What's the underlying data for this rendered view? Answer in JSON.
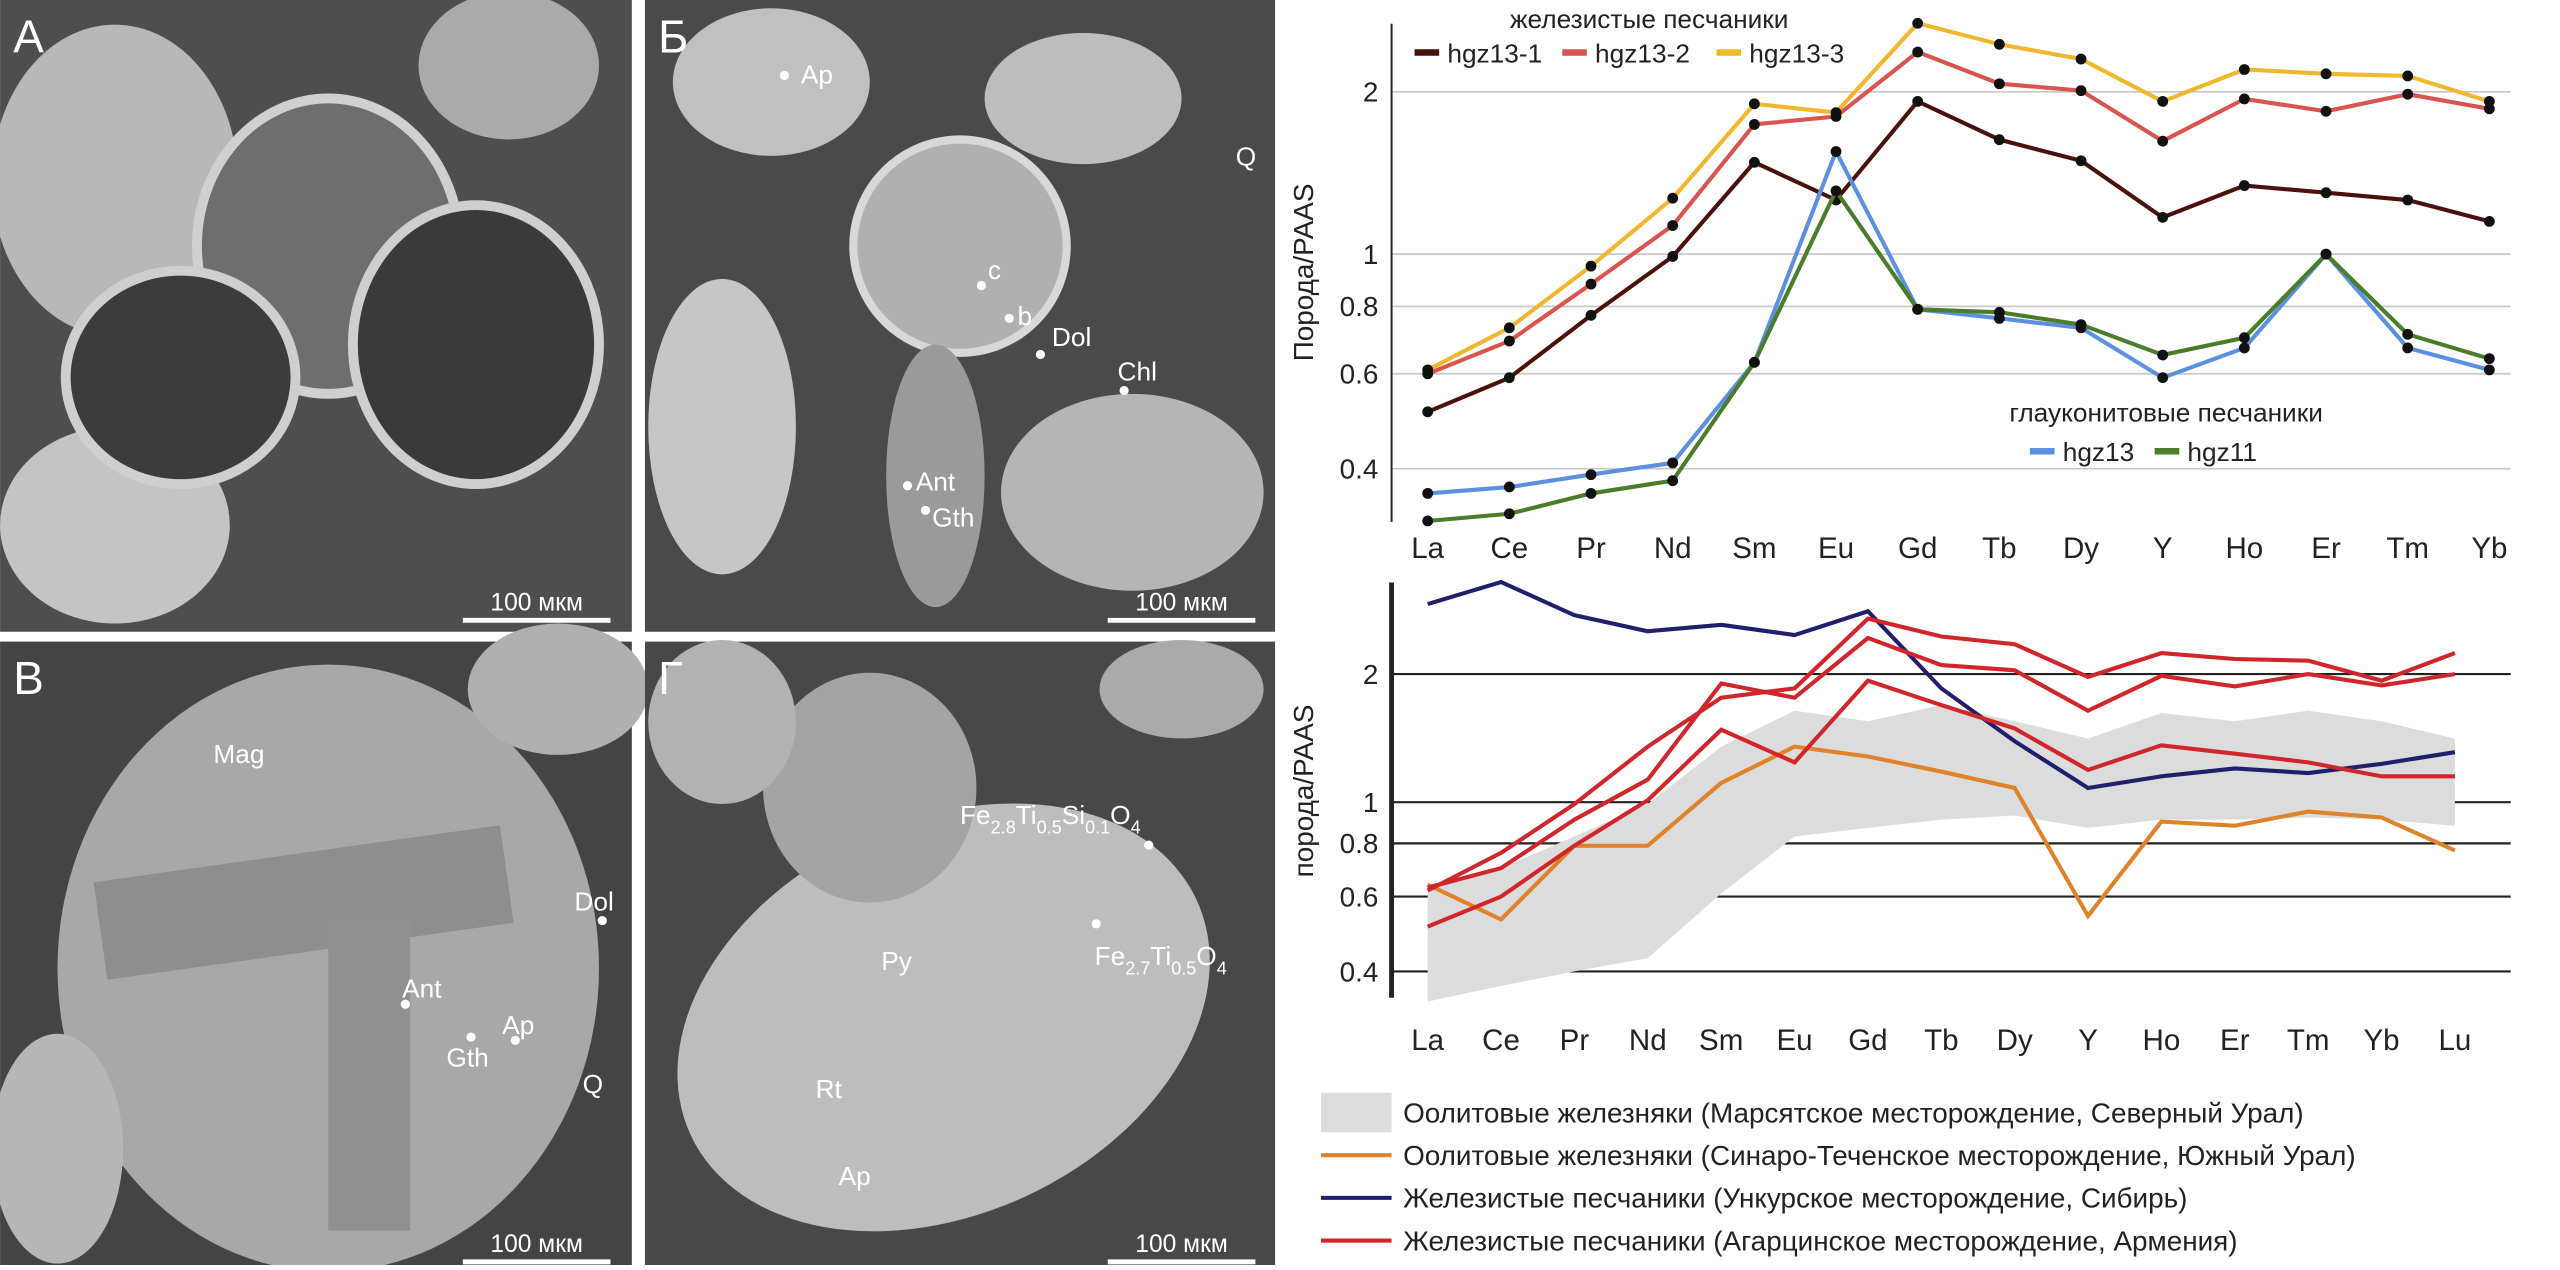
{
  "panels": [
    {
      "letter": "А",
      "labels": [],
      "scale": "100 мкм"
    },
    {
      "letter": "Б",
      "labels": [
        {
          "text": "Ap"
        },
        {
          "text": "Q"
        },
        {
          "text": "c"
        },
        {
          "text": "b"
        },
        {
          "text": "Dol"
        },
        {
          "text": "Chl"
        },
        {
          "text": "Ant"
        },
        {
          "text": "Gth"
        }
      ],
      "scale": "100 мкм"
    },
    {
      "letter": "В",
      "labels": [
        {
          "text": "Mag"
        },
        {
          "text": "Dol"
        },
        {
          "text": "Ant"
        },
        {
          "text": "Ap"
        },
        {
          "text": "Gth"
        },
        {
          "text": "Q"
        }
      ],
      "scale": "100 мкм"
    },
    {
      "letter": "Г",
      "labels": [
        {
          "text": [
            "Fe",
            "2.8",
            "Ti",
            "0.5",
            "Si",
            "0.1",
            "O",
            "4"
          ]
        },
        {
          "text": [
            "Fe",
            "2.7",
            "Ti",
            "0.5",
            "O",
            "4"
          ]
        },
        {
          "text": "Py"
        },
        {
          "text": "Rt"
        },
        {
          "text": "Ap"
        }
      ],
      "scale": "100 мкм"
    }
  ],
  "chart_data": [
    {
      "type": "line",
      "y_label": "Порода/PAAS",
      "log_y": true,
      "grid": true,
      "grid_color": "#c8c8c8",
      "markers": true,
      "legend_titles": [
        "железистые песчаники",
        "глауконитовые песчаники"
      ],
      "categories": [
        "La",
        "Ce",
        "Pr",
        "Nd",
        "Sm",
        "Eu",
        "Gd",
        "Tb",
        "Dy",
        "Y",
        "Ho",
        "Er",
        "Tm",
        "Yb"
      ],
      "ylim": [
        0.31,
        2.75
      ],
      "yticks": [
        0.4,
        0.6,
        0.8,
        1,
        2
      ],
      "series": [
        {
          "name": "hgz13-1",
          "color": "#4a100b",
          "values": [
            0.51,
            0.59,
            0.77,
            0.99,
            1.48,
            1.26,
            1.92,
            1.63,
            1.49,
            1.17,
            1.34,
            1.3,
            1.26,
            1.15
          ]
        },
        {
          "name": "hgz13-2",
          "color": "#d9534f",
          "values": [
            0.6,
            0.69,
            0.88,
            1.13,
            1.74,
            1.8,
            2.37,
            2.07,
            2.01,
            1.62,
            1.94,
            1.84,
            1.98,
            1.86
          ]
        },
        {
          "name": "hgz13-3",
          "color": "#f0b72d",
          "values": [
            0.61,
            0.73,
            0.95,
            1.27,
            1.9,
            1.83,
            2.68,
            2.45,
            2.3,
            1.92,
            2.2,
            2.16,
            2.14,
            1.92
          ]
        },
        {
          "name": "hgz13",
          "color": "#5b8fe0",
          "values": [
            0.36,
            0.37,
            0.39,
            0.41,
            0.63,
            1.55,
            0.79,
            0.76,
            0.73,
            0.59,
            0.67,
            1.0,
            0.67,
            0.61
          ]
        },
        {
          "name": "hgz11",
          "color": "#4a7c2a",
          "values": [
            0.32,
            0.33,
            0.36,
            0.38,
            0.63,
            1.31,
            0.79,
            0.78,
            0.74,
            0.65,
            0.7,
            1.0,
            0.71,
            0.64
          ]
        }
      ]
    },
    {
      "type": "line",
      "y_label": "порода/PAAS",
      "log_y": true,
      "grid": true,
      "grid_color": "#222222",
      "markers": false,
      "categories": [
        "La",
        "Ce",
        "Pr",
        "Nd",
        "Sm",
        "Eu",
        "Gd",
        "Tb",
        "Dy",
        "Y",
        "Ho",
        "Er",
        "Tm",
        "Yb",
        "Lu"
      ],
      "ylim": [
        0.335,
        3.4
      ],
      "yticks": [
        0.4,
        0.6,
        0.8,
        1,
        2
      ],
      "series": [
        {
          "name": "Оолитовые железняки (Марсятское месторождение, Северный Урал)",
          "color": "#dcdcdc",
          "upper": [
            0.63,
            0.7,
            0.83,
            0.99,
            1.35,
            1.64,
            1.55,
            1.69,
            1.55,
            1.41,
            1.62,
            1.55,
            1.64,
            1.55,
            1.41
          ],
          "lower": [
            0.34,
            0.37,
            0.4,
            0.43,
            0.61,
            0.83,
            0.87,
            0.91,
            0.93,
            0.87,
            0.91,
            0.91,
            0.92,
            0.91,
            0.88
          ]
        },
        {
          "name": "Оолитовые железняки (Синаро-Теченское месторождение, Южный Урал)",
          "color": "#e0822a",
          "values": [
            0.64,
            0.53,
            0.79,
            0.79,
            1.11,
            1.35,
            1.28,
            1.18,
            1.08,
            0.54,
            0.9,
            0.88,
            0.95,
            0.92,
            0.77
          ]
        },
        {
          "name": "Железистые песчаники (Ункурское месторождение, Сибирь)",
          "color": "#1f1f6b",
          "values": [
            2.92,
            3.29,
            2.75,
            2.52,
            2.61,
            2.47,
            2.81,
            1.85,
            1.39,
            1.08,
            1.15,
            1.2,
            1.17,
            1.23,
            1.31
          ]
        },
        {
          "name": "Железистые песчаники (Агарцинское месторождение, Армения)",
          "color": "#d0262b",
          "values": [
            [
              0.62,
              0.76,
              0.99,
              1.35,
              1.76,
              1.85,
              2.7,
              2.45,
              2.35,
              1.97,
              2.24,
              2.17,
              2.15,
              1.93,
              2.24
            ],
            [
              0.63,
              0.7,
              0.91,
              1.13,
              1.9,
              1.76,
              2.43,
              2.1,
              2.04,
              1.64,
              1.98,
              1.87,
              2.0,
              1.88,
              2.0
            ],
            [
              0.51,
              0.6,
              0.79,
              1.01,
              1.48,
              1.24,
              1.93,
              1.69,
              1.49,
              1.19,
              1.36,
              1.3,
              1.24,
              1.15,
              1.15
            ]
          ]
        }
      ]
    }
  ]
}
